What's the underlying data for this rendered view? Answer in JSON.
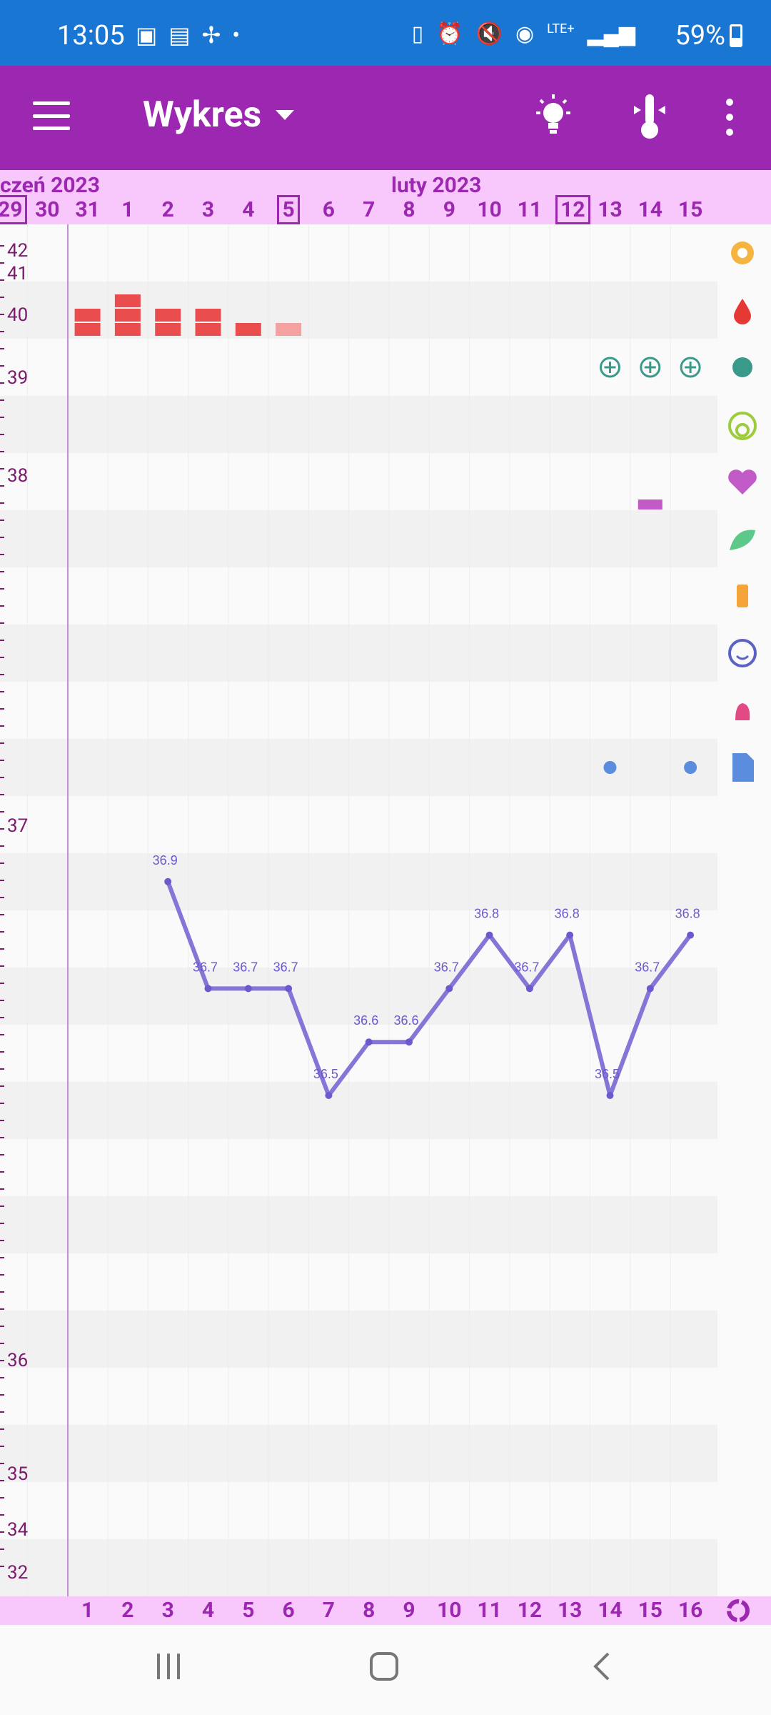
{
  "status": {
    "time": "13:05",
    "battery": "59%",
    "network": "LTE+"
  },
  "appbar": {
    "title": "Wykres"
  },
  "date_header": {
    "month_left": "czeń 2023",
    "month_right": "luty 2023",
    "days": [
      "29",
      "30",
      "31",
      "1",
      "2",
      "3",
      "4",
      "5",
      "6",
      "7",
      "8",
      "9",
      "10",
      "11",
      "12",
      "13",
      "14",
      "15"
    ],
    "boxed": [
      "29",
      "5",
      "12"
    ]
  },
  "y_axis_ticks": [
    "42",
    "41",
    "40",
    "39",
    "38",
    "37",
    "36",
    "35",
    "34",
    "32"
  ],
  "cycle_days": [
    "1",
    "2",
    "3",
    "4",
    "5",
    "6",
    "7",
    "8",
    "9",
    "10",
    "11",
    "12",
    "13",
    "14",
    "15",
    "16"
  ],
  "icons_right": [
    "flower-icon",
    "drop-icon",
    "splash-icon",
    "ring-icon",
    "heart-icon",
    "leaf-icon",
    "bottle-icon",
    "smile-icon",
    "hand-icon",
    "note-icon"
  ],
  "chart_data": {
    "type": "line",
    "x": [
      3,
      4,
      5,
      6,
      7,
      8,
      9,
      10,
      11,
      12,
      13,
      14,
      15,
      16
    ],
    "values": [
      36.9,
      36.7,
      36.7,
      36.7,
      36.5,
      36.6,
      36.6,
      36.7,
      36.8,
      36.7,
      36.8,
      36.5,
      36.7,
      36.8
    ],
    "labels": [
      "36.9",
      "36.7",
      "36.7",
      "36.7",
      "36.5",
      "36.6",
      "36.6",
      "36.7",
      "36.8",
      "36.7",
      "36.8",
      "36.5",
      "36.7",
      "36.8"
    ],
    "color": "#8476d6",
    "bleeding": [
      {
        "day": "1",
        "level": 2
      },
      {
        "day": "2",
        "level": 3
      },
      {
        "day": "3",
        "level": 2
      },
      {
        "day": "4",
        "level": 2
      },
      {
        "day": "5",
        "level": 1
      },
      {
        "day": "6",
        "level": 1
      }
    ],
    "plus_markers": [
      "14",
      "15",
      "16"
    ],
    "note_markers": [
      "14",
      "16"
    ],
    "heart_marker": [
      "15"
    ]
  }
}
